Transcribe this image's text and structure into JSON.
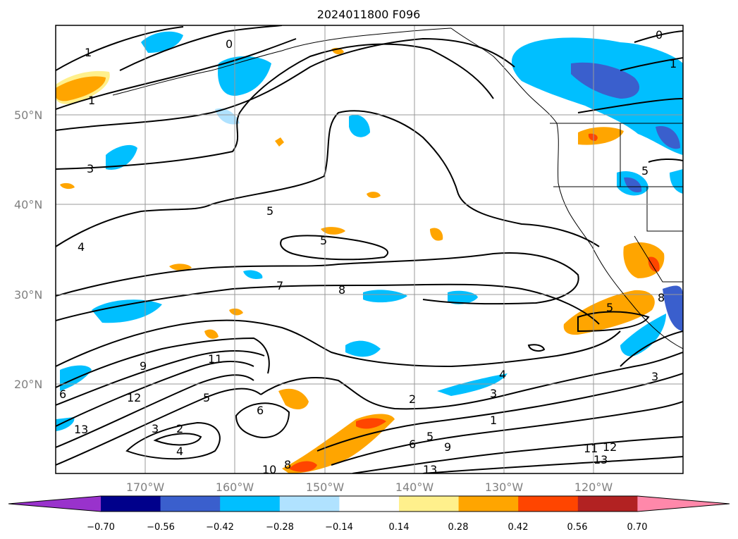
{
  "title": "2024011800 F096",
  "latitude_labels": [
    "50°N",
    "40°N",
    "30°N",
    "20°N"
  ],
  "longitude_labels": [
    "170°W",
    "160°W",
    "150°W",
    "140°W",
    "130°W",
    "120°W"
  ],
  "colorbar": {
    "labels": [
      "−0.70",
      "−0.56",
      "−0.42",
      "−0.28",
      "−0.14",
      "0.14",
      "0.28",
      "0.42",
      "0.56",
      "0.70"
    ],
    "colors": [
      "#9932cc",
      "#00008b",
      "#3a5fcd",
      "#00bfff",
      "#b0e2ff",
      "#ffffff",
      "#fff08c",
      "#ffa500",
      "#ff4500",
      "#b22222",
      "#ff88aa"
    ]
  },
  "contour_labels": [
    "1",
    "0",
    "1",
    "3",
    "4",
    "5",
    "5",
    "7",
    "8",
    "9",
    "11",
    "12",
    "13",
    "6",
    "2",
    "3",
    "4",
    "5",
    "6",
    "2",
    "3",
    "1",
    "4",
    "5",
    "6",
    "9",
    "11",
    "12",
    "13",
    "8",
    "10",
    "13",
    "3",
    "0",
    "1",
    "5",
    "5",
    "8"
  ]
}
